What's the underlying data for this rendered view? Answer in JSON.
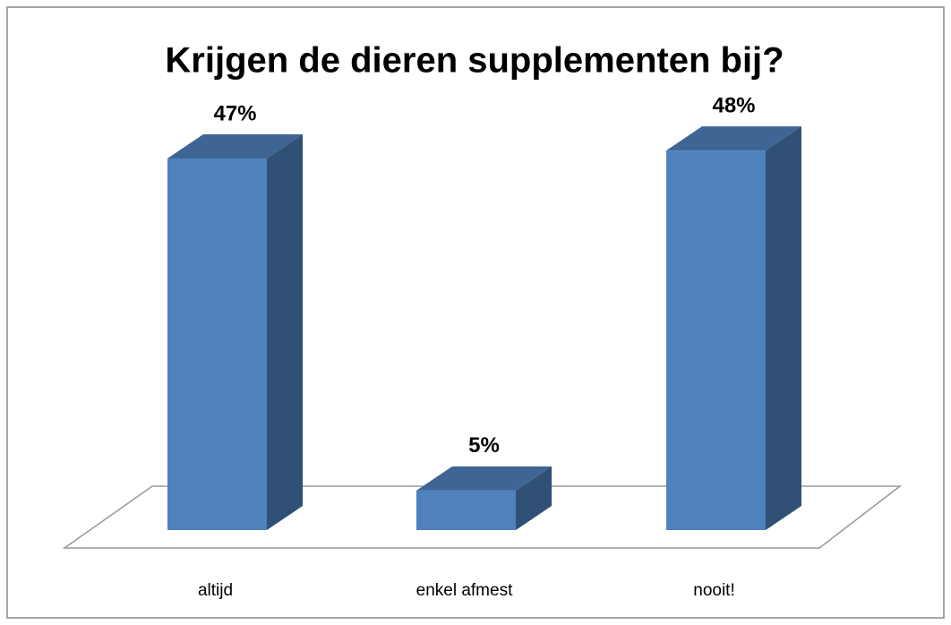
{
  "chart_data": {
    "type": "bar3d",
    "title": "Krijgen de dieren supplementen bij?",
    "categories": [
      "altijd",
      "enkel afmest",
      "nooit!"
    ],
    "values": [
      47,
      5,
      48
    ],
    "value_labels": [
      "47%",
      "5%",
      "48%"
    ],
    "color": "#4f81bd"
  }
}
